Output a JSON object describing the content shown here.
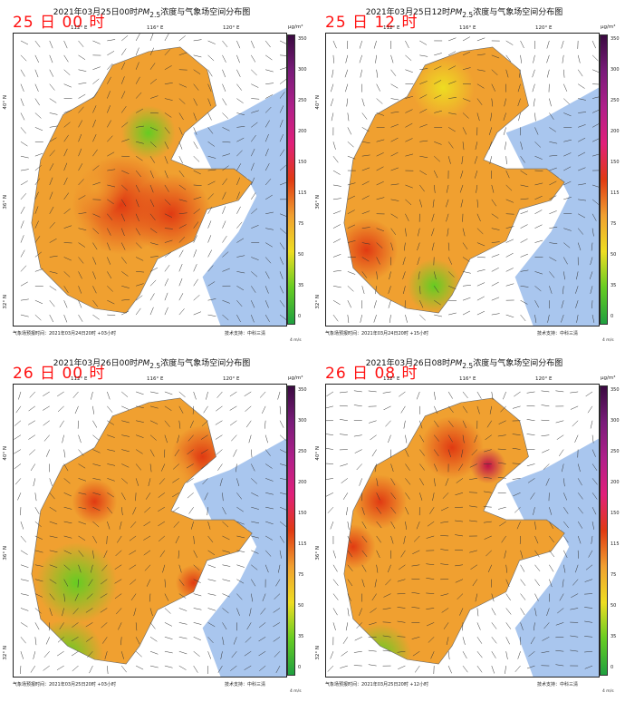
{
  "colorbar": {
    "unit": "μg/m³",
    "ticks": [
      "350",
      "300",
      "250",
      "200",
      "150",
      "115",
      "75",
      "50",
      "35",
      "0"
    ],
    "wind_label": "4 m/s"
  },
  "map_axes": {
    "lon_ticks": [
      "112° E",
      "116° E",
      "120° E"
    ],
    "lat_ticks": [
      "40° N",
      "36° N",
      "32° N"
    ]
  },
  "colors": {
    "green": "#66cc22",
    "yellow": "#eedd22",
    "orange": "#f0a030",
    "red": "#e03a12",
    "magenta": "#c01048",
    "sea": "#a9c6ee"
  },
  "panels": [
    {
      "title_prefix": "2021年03月25日00时",
      "title_species": "PM",
      "title_sub": "2.5",
      "title_suffix": "浓度与气象场空间分布图",
      "stamp": "25 日 00 时",
      "footer_left": "气象场预报时间：2021年03月24日20时 +03小时",
      "footer_right": "技术支持：中科三清"
    },
    {
      "title_prefix": "2021年03月25日12时",
      "title_species": "PM",
      "title_sub": "2.5",
      "title_suffix": "浓度与气象场空间分布图",
      "stamp": "25 日 12 时",
      "footer_left": "气象场预报时间：2021年03月24日20时 +15小时",
      "footer_right": "技术支持：中科三清"
    },
    {
      "title_prefix": "2021年03月26日00时",
      "title_species": "PM",
      "title_sub": "2.5",
      "title_suffix": "浓度与气象场空间分布图",
      "stamp": "26 日 00 时",
      "footer_left": "气象场预报时间：2021年03月25日20时 +03小时",
      "footer_right": "技术支持：中科三清"
    },
    {
      "title_prefix": "2021年03月26日08时",
      "title_species": "PM",
      "title_sub": "2.5",
      "title_suffix": "浓度与气象场空间分布图",
      "stamp": "26 日 08 时",
      "footer_left": "气象场预报时间：2021年03月25日20时 +12小时",
      "footer_right": "技术支持：中科三清"
    }
  ]
}
